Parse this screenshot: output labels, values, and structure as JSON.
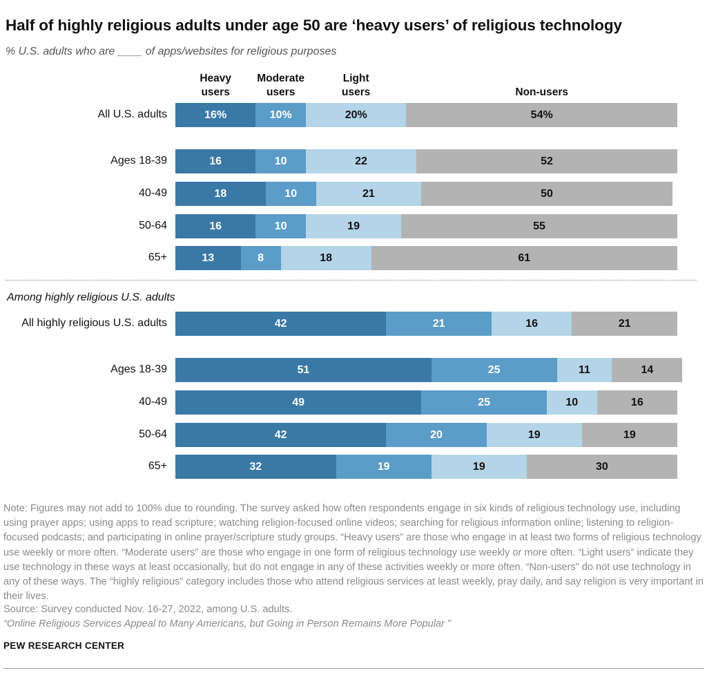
{
  "header": {
    "title": "Half of highly religious adults under age 50 are ‘heavy users’ of religious technology",
    "subtitle": "% U.S. adults who are ____ of apps/websites for religious purposes"
  },
  "colors": {
    "heavy": "#3a78a6",
    "moderate": "#5b9cc8",
    "light": "#b4d4e8",
    "non": "#b3b3b3"
  },
  "chart_data": {
    "type": "bar",
    "orientation": "horizontal-stacked",
    "series": [
      {
        "name": "Heavy users",
        "label_lines": [
          "Heavy",
          "users"
        ]
      },
      {
        "name": "Moderate users",
        "label_lines": [
          "Moderate",
          "users"
        ]
      },
      {
        "name": "Light users",
        "label_lines": [
          "Light",
          "users"
        ]
      },
      {
        "name": "Non-users",
        "label_lines": [
          "Non-users"
        ]
      }
    ],
    "section2_title": "Among highly religious U.S. adults",
    "rows": [
      {
        "label": "All U.S. adults",
        "values": [
          16,
          10,
          20,
          54
        ],
        "labels": [
          "16%",
          "10%",
          "20%",
          "54%"
        ]
      },
      {
        "label": "Ages 18-39",
        "values": [
          16,
          10,
          22,
          52
        ],
        "labels": [
          "16",
          "10",
          "22",
          "52"
        ]
      },
      {
        "label": "40-49",
        "values": [
          18,
          10,
          21,
          50
        ],
        "labels": [
          "18",
          "10",
          "21",
          "50"
        ]
      },
      {
        "label": "50-64",
        "values": [
          16,
          10,
          19,
          55
        ],
        "labels": [
          "16",
          "10",
          "19",
          "55"
        ]
      },
      {
        "label": "65+",
        "values": [
          13,
          8,
          18,
          61
        ],
        "labels": [
          "13",
          "8",
          "18",
          "61"
        ]
      },
      {
        "label": "All highly religious U.S. adults",
        "values": [
          42,
          21,
          16,
          21
        ],
        "labels": [
          "42",
          "21",
          "16",
          "21"
        ]
      },
      {
        "label": "Ages 18-39",
        "values": [
          51,
          25,
          11,
          14
        ],
        "labels": [
          "51",
          "25",
          "11",
          "14"
        ]
      },
      {
        "label": "40-49",
        "values": [
          49,
          25,
          10,
          16
        ],
        "labels": [
          "49",
          "25",
          "10",
          "16"
        ]
      },
      {
        "label": "50-64",
        "values": [
          42,
          20,
          19,
          19
        ],
        "labels": [
          "42",
          "20",
          "19",
          "19"
        ]
      },
      {
        "label": "65+",
        "values": [
          32,
          19,
          19,
          30
        ],
        "labels": [
          "32",
          "19",
          "19",
          "30"
        ]
      }
    ]
  },
  "footer": {
    "note": "Note: Figures may not add to 100% due to rounding. The survey asked how often respondents engage in six kinds of religious technology use, including using prayer apps; using apps to read scripture; watching religion-focused online videos; searching for religious information online; listening to religion-focused podcasts; and participating in online prayer/scripture study groups. “Heavy users” are those who engage in at least two forms of religious technology use weekly or more often. “Moderate users” are those who engage in one form of religious technology use weekly or more often. “Light users” indicate they use technology in these ways at least occasionally, but do not engage in any of these activities weekly or more often. “Non-users” do not use technology in any of these ways. The “highly religious” category includes those who attend religious services at least weekly, pray daily, and say religion is very important in their lives.",
    "source": "Source: Survey conducted Nov. 16-27, 2022, among U.S. adults.",
    "report": "“Online Religious Services Appeal to Many Americans, but Going in Person Remains More Popular ”",
    "brand": "PEW RESEARCH CENTER"
  }
}
